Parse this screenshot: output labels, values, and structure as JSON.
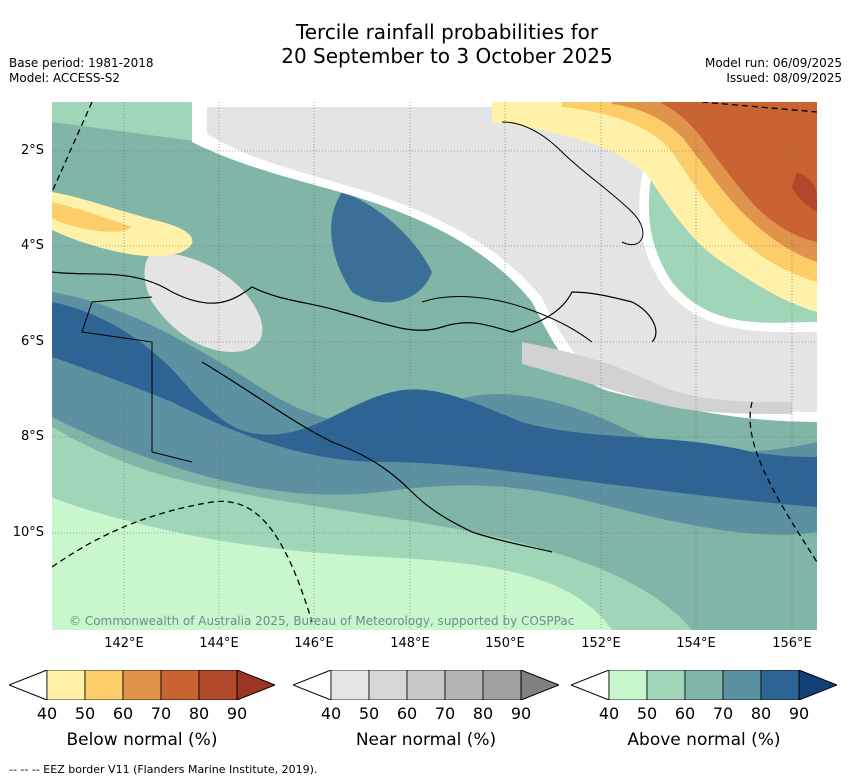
{
  "title": {
    "line1": "Tercile rainfall probabilities for",
    "line2": "20 September to 3 October 2025"
  },
  "meta": {
    "base_period": "Base period: 1981-2018",
    "model": "Model: ACCESS-S2",
    "model_run": "Model run: 06/09/2025",
    "issued": "Issued: 08/09/2025"
  },
  "map": {
    "lat_labels": [
      "2°S",
      "4°S",
      "6°S",
      "8°S",
      "10°S"
    ],
    "lon_labels": [
      "142°E",
      "144°E",
      "146°E",
      "148°E",
      "150°E",
      "152°E",
      "154°E",
      "156°E"
    ],
    "credit": "© Commonwealth of Australia 2025, Bureau of Meteorology, supported by COSPPac"
  },
  "colorbars": [
    {
      "label": "Below normal (%)",
      "ticks": [
        "40",
        "50",
        "60",
        "70",
        "80",
        "90"
      ],
      "colors": [
        "#fff2a8",
        "#fdcd6a",
        "#e0934a",
        "#c96432",
        "#b0482a",
        "#9c3623"
      ]
    },
    {
      "label": "Near normal (%)",
      "ticks": [
        "40",
        "50",
        "60",
        "70",
        "80",
        "90"
      ],
      "colors": [
        "#e6e6e6",
        "#d7d7d7",
        "#c8c8c8",
        "#b4b4b4",
        "#a0a0a0",
        "#808080"
      ]
    },
    {
      "label": "Above normal (%)",
      "ticks": [
        "40",
        "50",
        "60",
        "70",
        "80",
        "90"
      ],
      "colors": [
        "#c9f7cd",
        "#a1d5b8",
        "#80b5a8",
        "#5b91a1",
        "#2e6494",
        "#153f78"
      ]
    }
  ],
  "footer": "--  --  -- EEZ border V11 (Flanders Marine Institute, 2019)."
}
